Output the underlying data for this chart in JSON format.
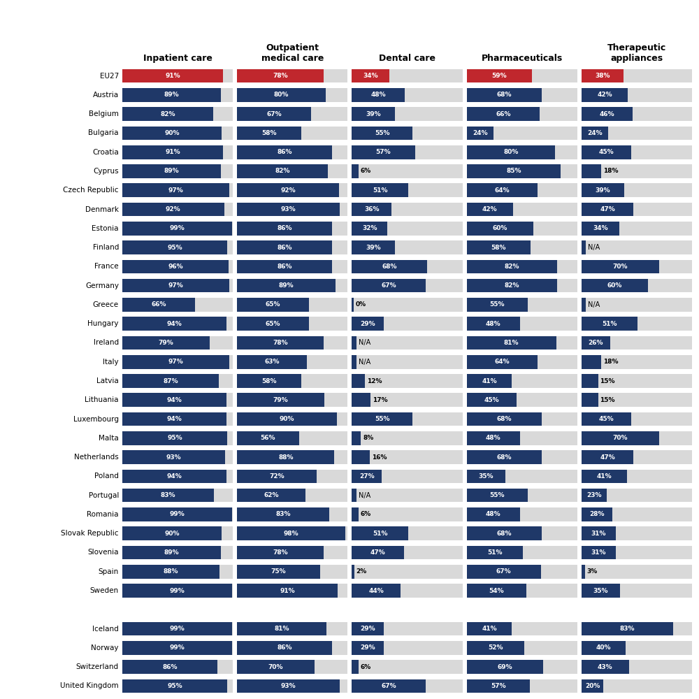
{
  "countries": [
    "EU27",
    "Austria",
    "Belgium",
    "Bulgaria",
    "Croatia",
    "Cyprus",
    "Czech Republic",
    "Denmark",
    "Estonia",
    "Finland",
    "France",
    "Germany",
    "Greece",
    "Hungary",
    "Ireland",
    "Italy",
    "Latvia",
    "Lithuania",
    "Luxembourg",
    "Malta",
    "Netherlands",
    "Poland",
    "Portugal",
    "Romania",
    "Slovak Republic",
    "Slovenia",
    "Spain",
    "Sweden",
    "",
    "Iceland",
    "Norway",
    "Switzerland",
    "United Kingdom"
  ],
  "inpatient": [
    91,
    89,
    82,
    90,
    91,
    89,
    97,
    92,
    99,
    95,
    96,
    97,
    66,
    94,
    79,
    97,
    87,
    94,
    94,
    95,
    93,
    94,
    83,
    99,
    90,
    89,
    88,
    99,
    null,
    99,
    99,
    86,
    95
  ],
  "outpatient": [
    78,
    80,
    67,
    58,
    86,
    82,
    92,
    93,
    86,
    86,
    86,
    89,
    65,
    65,
    78,
    63,
    58,
    79,
    90,
    56,
    88,
    72,
    62,
    83,
    98,
    78,
    75,
    91,
    null,
    81,
    86,
    70,
    93
  ],
  "dental": [
    34,
    48,
    39,
    55,
    57,
    6,
    51,
    36,
    32,
    39,
    68,
    67,
    0,
    29,
    null,
    null,
    12,
    17,
    55,
    8,
    16,
    27,
    null,
    6,
    51,
    47,
    2,
    44,
    null,
    29,
    29,
    6,
    67
  ],
  "pharma": [
    59,
    68,
    66,
    24,
    80,
    85,
    64,
    42,
    60,
    58,
    82,
    82,
    55,
    48,
    81,
    64,
    41,
    45,
    68,
    48,
    68,
    35,
    55,
    48,
    68,
    51,
    67,
    54,
    null,
    41,
    52,
    69,
    57
  ],
  "therapeutic": [
    38,
    42,
    46,
    24,
    45,
    18,
    39,
    47,
    34,
    null,
    70,
    60,
    null,
    51,
    26,
    18,
    15,
    15,
    45,
    70,
    47,
    41,
    23,
    28,
    31,
    31,
    3,
    35,
    null,
    83,
    40,
    43,
    20
  ],
  "dental_na": [
    false,
    false,
    false,
    false,
    false,
    false,
    false,
    false,
    false,
    false,
    false,
    false,
    false,
    false,
    true,
    true,
    false,
    false,
    false,
    false,
    false,
    false,
    true,
    false,
    false,
    false,
    false,
    false,
    null,
    false,
    false,
    false,
    false
  ],
  "therapeutic_na": [
    false,
    false,
    false,
    false,
    false,
    false,
    false,
    false,
    false,
    true,
    false,
    false,
    true,
    false,
    false,
    false,
    false,
    false,
    false,
    false,
    false,
    false,
    false,
    false,
    false,
    false,
    false,
    false,
    null,
    false,
    false,
    false,
    false
  ],
  "eu27_color": "#c0272d",
  "bar_color": "#1f3868",
  "bg_color": "#d9d9d9",
  "col_titles": [
    "Inpatient care",
    "Outpatient\nmedical care",
    "Dental care",
    "Pharmaceuticals",
    "Therapeutic\nappliances"
  ],
  "max_val": 100
}
